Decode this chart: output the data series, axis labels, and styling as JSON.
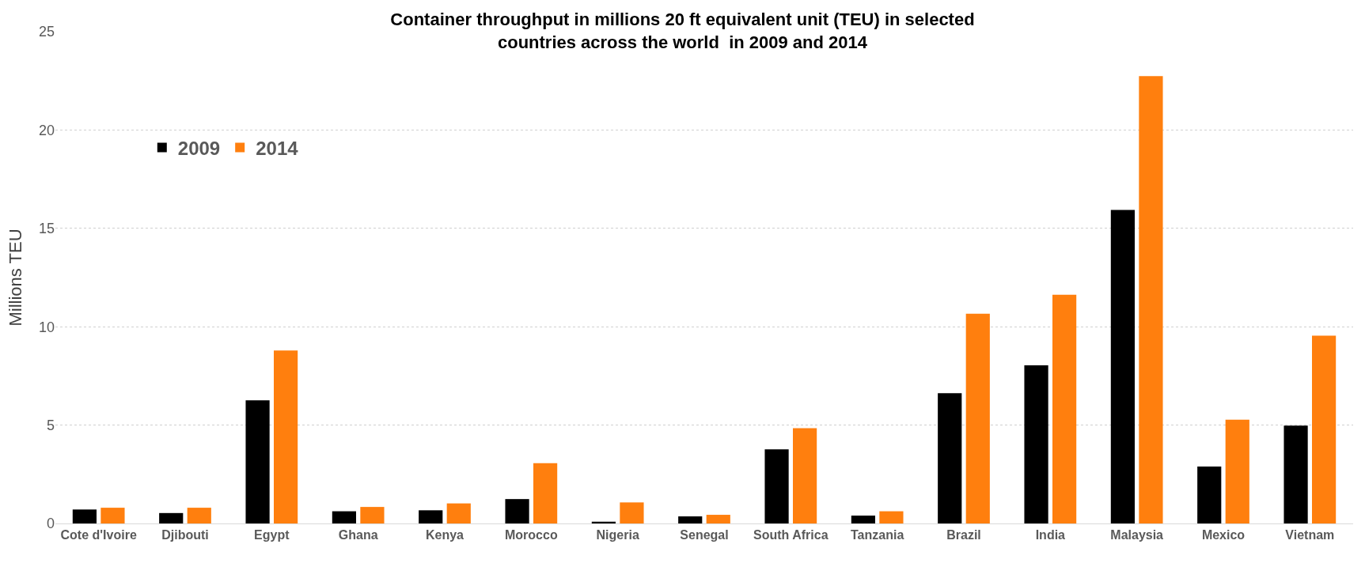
{
  "chart_data": {
    "type": "bar",
    "title": "Container throughput in millions 20 ft equivalent unit (TEU) in selected countries across the world  in 2009 and 2014",
    "ylabel": "Millions TEU",
    "categories": [
      "Cote d'Ivoire",
      "Djibouti",
      "Egypt",
      "Ghana",
      "Kenya",
      "Morocco",
      "Nigeria",
      "Senegal",
      "South Africa",
      "Tanzania",
      "Brazil",
      "India",
      "Malaysia",
      "Mexico",
      "Vietnam"
    ],
    "series": [
      {
        "name": "2009",
        "color": "#000000",
        "values": [
          0.71,
          0.53,
          6.26,
          0.62,
          0.67,
          1.24,
          0.09,
          0.36,
          3.77,
          0.4,
          6.62,
          8.04,
          15.94,
          2.89,
          4.97
        ]
      },
      {
        "name": "2014",
        "color": "#ff7f0e",
        "values": [
          0.8,
          0.8,
          8.79,
          0.84,
          1.02,
          3.06,
          1.07,
          0.44,
          4.84,
          0.62,
          10.66,
          11.63,
          22.74,
          5.28,
          9.55
        ]
      }
    ],
    "ylim": [
      0,
      25
    ],
    "yticks": [
      0,
      5,
      10,
      15,
      20,
      25
    ],
    "grid": "y",
    "legend": "top left"
  }
}
